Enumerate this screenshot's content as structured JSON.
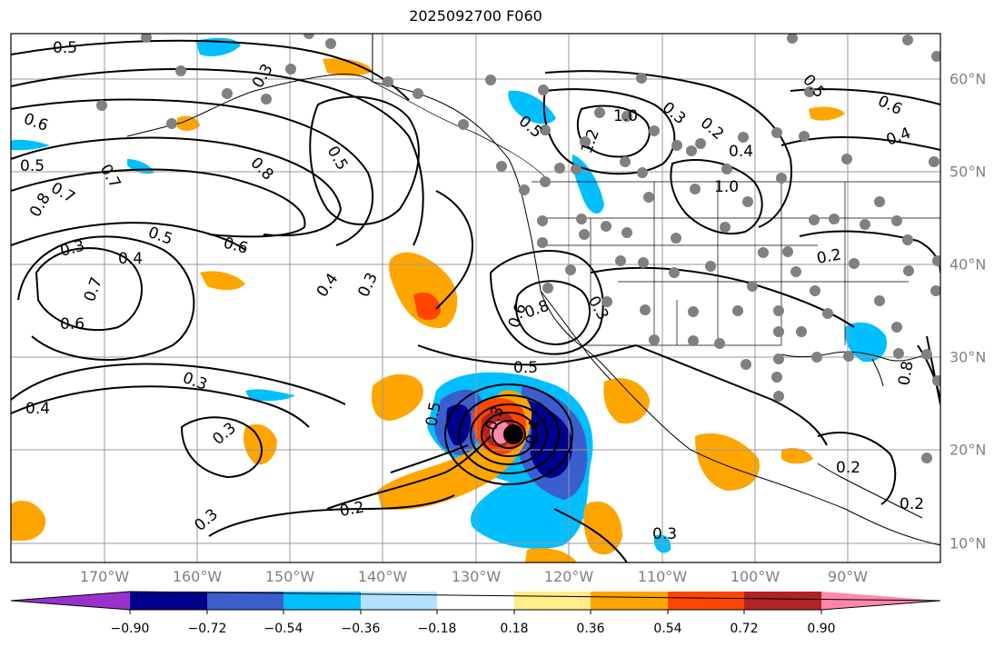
{
  "title": "2025092700 F060",
  "lon_labels": [
    "170°W",
    "160°W",
    "150°W",
    "140°W",
    "130°W",
    "120°W",
    "110°W",
    "100°W",
    "90°W"
  ],
  "lat_labels": [
    "60°N",
    "50°N",
    "40°N",
    "30°N",
    "20°N",
    "10°N"
  ],
  "colorbar": {
    "ticks": [
      "−0.90",
      "−0.72",
      "−0.54",
      "−0.36",
      "−0.18",
      "0.18",
      "0.36",
      "0.54",
      "0.72",
      "0.90"
    ],
    "colors": [
      "#9932cc",
      "#00008b",
      "#3a5fcd",
      "#00bfff",
      "#b0e2ff",
      "#ffffff",
      "#ffec8b",
      "#ffa500",
      "#ff4500",
      "#b22222",
      "#ff88aa"
    ]
  },
  "contour_labels": [
    "0.5",
    "0.6",
    "0.5",
    "0.7",
    "0.8",
    "0.7",
    "0.8",
    "0.5",
    "0.3",
    "0.4",
    "0.5",
    "0.6",
    "0.7",
    "0.6",
    "0.4",
    "0.3",
    "0.4",
    "0.3",
    "0.3",
    "0.3",
    "0.2",
    "0.3",
    "0.5",
    "0.6",
    "0.8",
    "0.3",
    "0.5",
    "1.0",
    "1.2",
    "0.3",
    "0.2",
    "0.4",
    "1.0",
    "0.2",
    "0.5",
    "0.6",
    "0.4",
    "0.2",
    "0.3",
    "0.4",
    "0.5",
    "0.8",
    "0.3",
    "0.2"
  ]
}
